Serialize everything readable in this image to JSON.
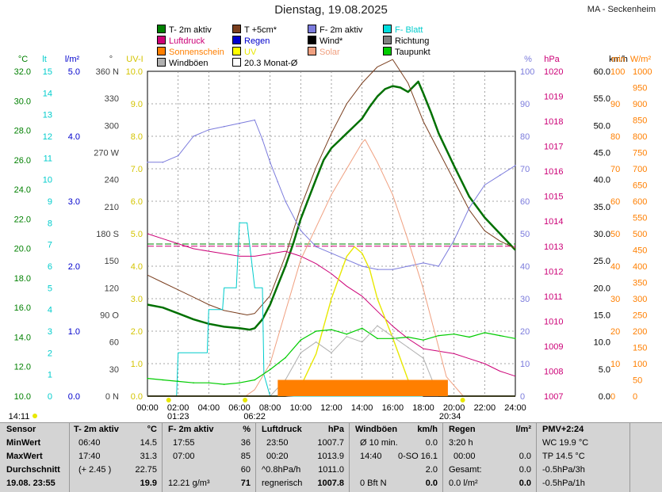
{
  "title": "Dienstag, 19.08.2025",
  "station": "MA - Seckenheim",
  "legend": [
    {
      "label": "T- 2m aktiv",
      "color": "#008000",
      "col": 0,
      "row": 0
    },
    {
      "label": "T +5cm*",
      "color": "#7a3e1e",
      "col": 1,
      "row": 0
    },
    {
      "label": "F- 2m aktiv",
      "color": "#7b7bdc",
      "col": 2,
      "row": 0
    },
    {
      "label": "F- Blatt",
      "color": "#00dddd",
      "col": 3,
      "row": 0
    },
    {
      "label": "Luftdruck",
      "color": "#cc0077",
      "col": 0,
      "row": 1
    },
    {
      "label": "Regen",
      "color": "#0000cc",
      "col": 1,
      "row": 1
    },
    {
      "label": "Wind*",
      "color": "#000000",
      "col": 2,
      "row": 1
    },
    {
      "label": "Richtung",
      "color": "#808080",
      "col": 3,
      "row": 1
    },
    {
      "label": "Sonnenschein",
      "color": "#ff7f00",
      "col": 0,
      "row": 2
    },
    {
      "label": "UV",
      "color": "#ffff00",
      "col": 1,
      "row": 2
    },
    {
      "label": "Solar",
      "color": "#f0a080",
      "col": 2,
      "row": 2
    },
    {
      "label": "Taupunkt",
      "color": "#00cc00",
      "col": 3,
      "row": 2
    },
    {
      "label": "Windböen",
      "color": "#b0b0b0",
      "col": 0,
      "row": 3
    },
    {
      "label": "20.3 Monat-Ø",
      "color": "#ffffff",
      "col": 1,
      "row": 3
    }
  ],
  "colors": {
    "temp": "#007000",
    "temp5": "#7a3e1e",
    "hum": "#7b7bdc",
    "leaf": "#00cccc",
    "press": "#cc0077",
    "rain": "#0000cc",
    "wind": "#000000",
    "dir": "#808080",
    "sun": "#ff7f00",
    "uv": "#e8e800",
    "solar": "#f0a080",
    "dew": "#00cc00",
    "gust": "#b0b0b0",
    "grid": "#888888"
  },
  "axes": [
    {
      "unit": "°C",
      "min": 10,
      "max": 32,
      "step": 2,
      "dec": 1,
      "color": "#008000"
    },
    {
      "unit": "lt",
      "min": 0,
      "max": 15,
      "step": 1,
      "dec": 0,
      "color": "#00cccc"
    },
    {
      "unit": "l/m²",
      "min": 0,
      "max": 5,
      "step": 1,
      "dec": 1,
      "color": "#0000cc"
    },
    {
      "unit": "°",
      "min": 0,
      "max": 360,
      "step": 30,
      "dec": 0,
      "color": "#404040",
      "labels": {
        "0": "0 N",
        "90": "90 O",
        "180": "180 S",
        "270": "270 W",
        "360": "360 N"
      }
    },
    {
      "unit": "UV-I",
      "min": 0,
      "max": 10,
      "step": 1,
      "dec": 1,
      "color": "#d4c400"
    },
    {
      "unit": "%",
      "min": 0,
      "max": 100,
      "step": 10,
      "dec": 0,
      "color": "#7b7bdc"
    },
    {
      "unit": "hPa",
      "min": 1007,
      "max": 1020,
      "step": 1,
      "dec": 0,
      "color": "#cc0077"
    },
    {
      "unit": "km/h",
      "min": 0,
      "max": 60,
      "step": 5,
      "dec": 1,
      "color": "#000000"
    },
    {
      "unit": "min",
      "min": 0,
      "max": 100,
      "step": 10,
      "dec": 0,
      "color": "#ff7f00"
    },
    {
      "unit": "W/m²",
      "min": 0,
      "max": 1000,
      "step": 50,
      "dec": 0,
      "color": "#ff7f00"
    }
  ],
  "chart_data": {
    "type": "line",
    "title": "Dienstag, 19.08.2025",
    "x_ticks": [
      "00:00",
      "02:00",
      "04:00",
      "06:00",
      "08:00",
      "10:00",
      "12:00",
      "14:00",
      "16:00",
      "18:00",
      "20:00",
      "22:00",
      "24:00"
    ],
    "sun_events": {
      "moonset": "01:23",
      "sunrise": "06:22",
      "sunset": "20:34",
      "now": "14:11"
    },
    "series": [
      {
        "name": "T- 2m aktiv",
        "axis": "°C",
        "unit": "°C",
        "x": [
          0,
          1,
          2,
          3,
          4,
          5,
          6,
          6.67,
          7,
          7.5,
          8,
          8.5,
          9,
          9.5,
          10,
          11,
          11.5,
          12,
          12.5,
          13,
          13.5,
          14,
          14.5,
          15,
          15.5,
          16,
          16.5,
          17,
          17.67,
          18,
          18.5,
          19,
          20,
          21,
          22,
          23,
          24
        ],
        "y": [
          16.2,
          16.0,
          15.6,
          15.2,
          14.9,
          14.7,
          14.6,
          14.5,
          14.6,
          15.2,
          16.2,
          17.5,
          18.8,
          20.3,
          22.0,
          24.7,
          26.0,
          26.8,
          27.3,
          27.8,
          28.3,
          28.8,
          29.6,
          30.3,
          30.8,
          31.0,
          30.9,
          30.6,
          31.3,
          30.5,
          29.2,
          27.8,
          25.6,
          23.5,
          22.1,
          21.0,
          19.9
        ]
      },
      {
        "name": "T +5cm*",
        "axis": "°C",
        "unit": "°C",
        "x": [
          0,
          1,
          2,
          3,
          4,
          5,
          6,
          6.5,
          7,
          8,
          9,
          10,
          11,
          12,
          13,
          14,
          15,
          16,
          17,
          18,
          19,
          20,
          21,
          22,
          23,
          24
        ],
        "y": [
          18.2,
          17.7,
          17.2,
          16.7,
          16.2,
          15.8,
          15.6,
          15.5,
          15.6,
          16.8,
          19.5,
          22.8,
          25.5,
          27.8,
          29.8,
          31.2,
          32.3,
          32.8,
          31.2,
          28.6,
          26.6,
          24.6,
          22.6,
          21.2,
          20.5,
          20.0
        ]
      },
      {
        "name": "F- 2m aktiv",
        "axis": "%",
        "unit": "%",
        "x": [
          0,
          1,
          2,
          3,
          4,
          5,
          6,
          7,
          7.5,
          8,
          8.5,
          9,
          10,
          11,
          12,
          13,
          14,
          15,
          16,
          17,
          18,
          19,
          20,
          21,
          22,
          23,
          24
        ],
        "y": [
          72,
          72,
          74,
          80,
          82,
          83,
          84,
          85,
          79,
          72,
          66,
          60,
          51,
          46,
          44,
          42,
          40,
          39,
          39,
          40,
          41,
          40,
          48,
          58,
          65,
          68,
          71
        ]
      },
      {
        "name": "F- Blatt",
        "axis": "lt",
        "unit": "lt",
        "x": [
          0,
          1.9,
          2,
          3.9,
          4,
          4.9,
          5,
          5.8,
          6,
          6.5,
          7,
          7.5,
          7.6,
          8,
          24
        ],
        "y": [
          0,
          0,
          2,
          2,
          4,
          4,
          5,
          5,
          8,
          8,
          5,
          5,
          1,
          0,
          0
        ]
      },
      {
        "name": "Luftdruck",
        "axis": "hPa",
        "unit": "hPa",
        "x": [
          0,
          1,
          2,
          3,
          4,
          5,
          6,
          7,
          8,
          9,
          10,
          11,
          12,
          13,
          14,
          15,
          16,
          17,
          18,
          19,
          20,
          21,
          22,
          23,
          24
        ],
        "y": [
          1013.5,
          1013.3,
          1013.1,
          1012.9,
          1012.8,
          1012.7,
          1012.6,
          1012.6,
          1012.7,
          1012.8,
          1012.6,
          1012.3,
          1011.9,
          1011.4,
          1011.0,
          1010.4,
          1009.8,
          1009.3,
          1008.9,
          1008.8,
          1008.7,
          1008.5,
          1008.3,
          1008.0,
          1007.8
        ]
      },
      {
        "name": "Solar",
        "axis": "W/m²",
        "unit": "W/m²",
        "x": [
          0,
          6.4,
          7,
          8,
          9,
          10,
          11,
          12,
          13,
          14,
          14.2,
          15,
          16,
          17,
          18,
          19,
          19.5,
          20.6,
          24
        ],
        "y": [
          0,
          0,
          20,
          100,
          260,
          420,
          520,
          620,
          700,
          780,
          790,
          720,
          620,
          480,
          330,
          150,
          60,
          0,
          0
        ]
      },
      {
        "name": "UV",
        "axis": "UV-I",
        "unit": "UV-I",
        "x": [
          0,
          9,
          10,
          11,
          12,
          13,
          13.5,
          14,
          14.5,
          15,
          16,
          17,
          18,
          19,
          24
        ],
        "y": [
          0,
          0,
          0.3,
          1.3,
          3.0,
          4.3,
          4.6,
          4.4,
          3.9,
          3.0,
          1.8,
          0.5,
          0.1,
          0,
          0
        ]
      },
      {
        "name": "Taupunkt",
        "axis": "°C",
        "unit": "°C",
        "x": [
          0,
          1,
          2,
          3,
          4,
          5,
          6,
          7,
          8,
          9,
          10,
          11,
          12,
          13,
          14,
          15,
          16,
          17,
          18,
          19,
          20,
          21,
          22,
          23,
          24
        ],
        "y": [
          11.2,
          11.1,
          11.0,
          10.9,
          10.9,
          10.8,
          10.9,
          11.1,
          11.8,
          12.6,
          13.8,
          14.4,
          14.5,
          14.2,
          14.6,
          13.9,
          13.9,
          14.0,
          13.8,
          14.1,
          14.2,
          14.0,
          14.3,
          14.1,
          13.9
        ]
      },
      {
        "name": "Windböen",
        "axis": "km/h",
        "unit": "km/h",
        "x": [
          0,
          8,
          9,
          10,
          11,
          12,
          13,
          14,
          15,
          16,
          17,
          18,
          19,
          24
        ],
        "y": [
          0,
          0,
          3,
          8,
          10,
          8,
          11,
          10,
          13,
          11,
          9,
          7,
          0,
          0
        ]
      },
      {
        "name": "Wind*",
        "axis": "km/h",
        "unit": "km/h",
        "x": [
          0,
          9,
          10,
          11,
          12,
          13,
          14,
          15,
          16,
          17,
          17.8,
          18,
          24
        ],
        "y": [
          0,
          0,
          0.2,
          0.5,
          0.8,
          1.0,
          1.3,
          1.2,
          1.0,
          0.7,
          0.3,
          0,
          0
        ]
      },
      {
        "name": "Sonnenschein",
        "axis": "min",
        "unit": "min",
        "x": [
          8.5,
          19.6
        ],
        "y": [
          5,
          5
        ]
      }
    ],
    "reference_lines": [
      {
        "name": "20.3 Monat-Ø",
        "axis": "°C",
        "value": 20.3,
        "color": "#008000"
      },
      {
        "name": "Monat-Ø Luftdruck",
        "axis": "hPa",
        "value": 1013.0,
        "color": "#cc0077"
      }
    ],
    "xlim": [
      0,
      24
    ]
  },
  "footer": {
    "sensor": {
      "head": "Sensor",
      "rows": [
        "MinWert",
        "MaxWert",
        "Durchschnitt",
        "19.08. 23:55"
      ]
    },
    "temp": {
      "head": "T- 2m aktiv",
      "unit": "°C",
      "rows": [
        [
          "06:40",
          "14.5"
        ],
        [
          "17:40",
          "31.3"
        ],
        [
          "(+ 2.45 )",
          "22.75"
        ],
        [
          "",
          "19.9"
        ]
      ]
    },
    "hum": {
      "head": "F- 2m aktiv",
      "unit": "%",
      "rows": [
        [
          "17:55",
          "36"
        ],
        [
          "07:00",
          "85"
        ],
        [
          "",
          "60"
        ],
        [
          "12.21 g/m³",
          "71"
        ]
      ]
    },
    "press": {
      "head": "Luftdruck",
      "unit": "hPa",
      "rows": [
        [
          "23:50",
          "1007.7"
        ],
        [
          "00:20",
          "1013.9"
        ],
        [
          "^0.8hPa/h",
          "1011.0"
        ],
        [
          "regnerisch",
          "1007.8"
        ]
      ]
    },
    "gust": {
      "head": "Windböen",
      "unit": "km/h",
      "rows": [
        [
          "Ø 10 min.",
          "",
          "0.0"
        ],
        [
          "14:40",
          "0-SO",
          "16.1"
        ],
        [
          "",
          "",
          "2.0"
        ],
        [
          "0 Bft N",
          "",
          "0.0"
        ]
      ]
    },
    "rain": {
      "head": "Regen",
      "unit": "l/m²",
      "rows": [
        [
          "3:20 h",
          ""
        ],
        [
          "00:00",
          "0.0"
        ],
        [
          "Gesamt:",
          "0.0"
        ],
        [
          "0.0 l/m²",
          "0.0"
        ]
      ]
    },
    "pmv": {
      "head": "PMV+2:24",
      "rows": [
        "WC 19.9 °C",
        "TP 14.5 °C",
        "-0.5hPa/3h",
        "-0.5hPa/1h"
      ]
    }
  }
}
